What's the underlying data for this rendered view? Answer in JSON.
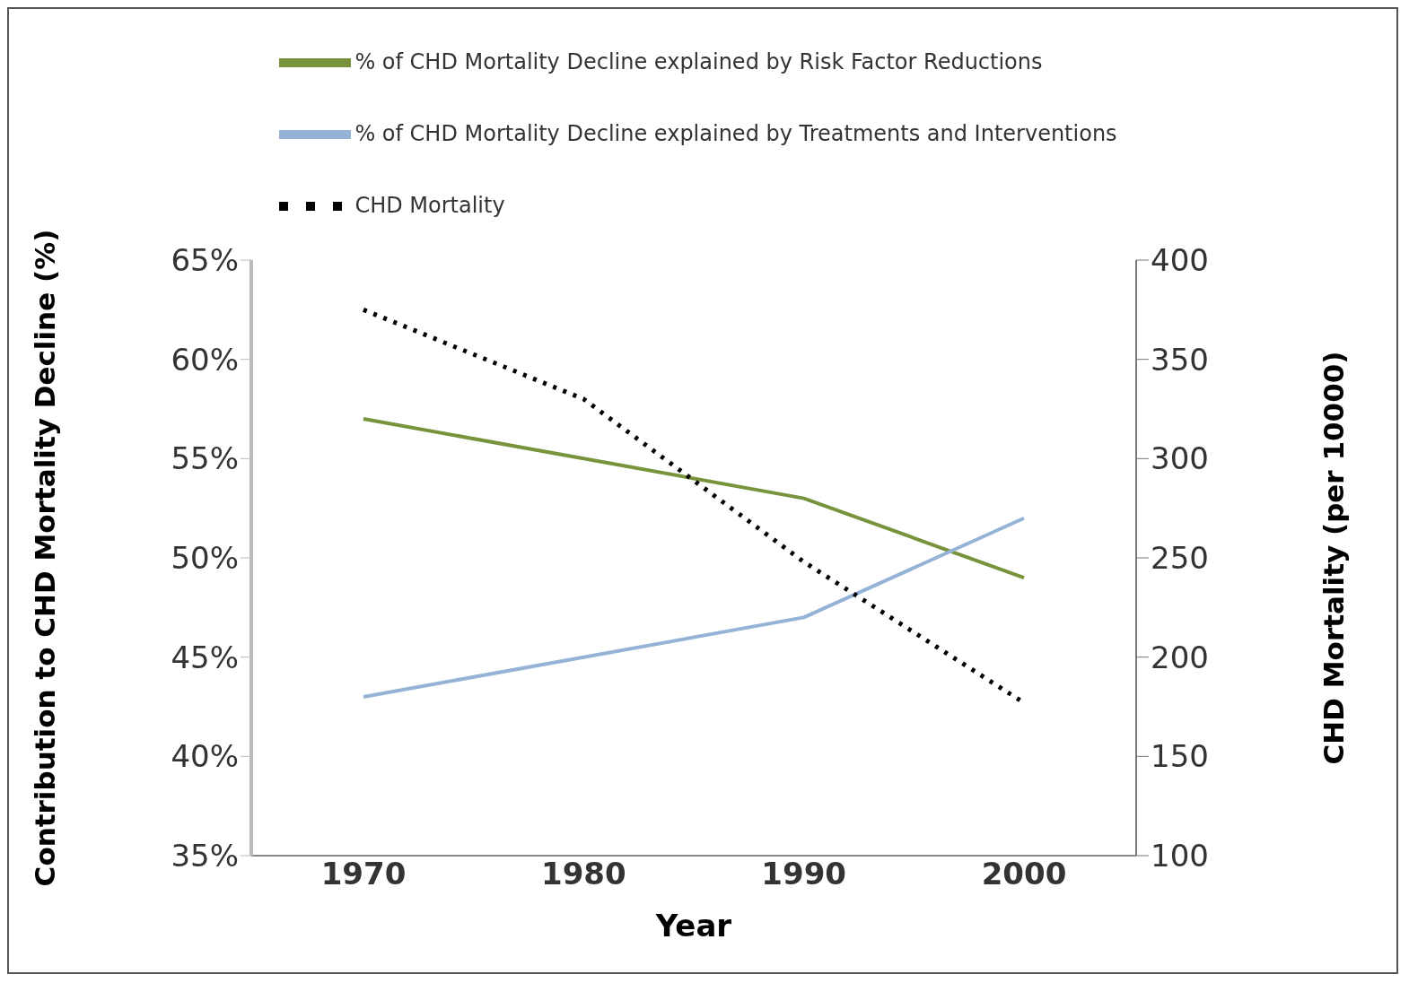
{
  "chart_data": {
    "type": "line",
    "xlabel": "Year",
    "ylabel": "Contribution to CHD Mortality Decline (%)",
    "y2label": "CHD Mortality (per 10000)",
    "categories": [
      "1970",
      "1980",
      "1990",
      "2000"
    ],
    "series": [
      {
        "name": "% of CHD Mortality Decline explained by Risk Factor Reductions",
        "color": "#77933c",
        "values": [
          57,
          55,
          53,
          49
        ]
      },
      {
        "name": "% of CHD Mortality Decline explained by Treatments and Interventions",
        "color": "#95b3d7",
        "values": [
          43,
          45,
          47,
          52
        ]
      },
      {
        "name": "CHD Mortality",
        "color": "#000000",
        "values": [
          375,
          330,
          248,
          177
        ],
        "axis": "y2",
        "line_style": "dotted"
      }
    ],
    "ylim": [
      35,
      65
    ],
    "yticks": [
      {
        "value": 35,
        "label": "35%"
      },
      {
        "value": 40,
        "label": "40%"
      },
      {
        "value": 45,
        "label": "45%"
      },
      {
        "value": 50,
        "label": "50%"
      },
      {
        "value": 55,
        "label": "55%"
      },
      {
        "value": 60,
        "label": "60%"
      },
      {
        "value": 65,
        "label": "65%"
      }
    ],
    "y2lim": [
      100,
      400
    ],
    "y2ticks": [
      100,
      150,
      200,
      250,
      300,
      350,
      400
    ],
    "legend": "top",
    "grid": false,
    "marker": "none",
    "line_style": "solid"
  }
}
